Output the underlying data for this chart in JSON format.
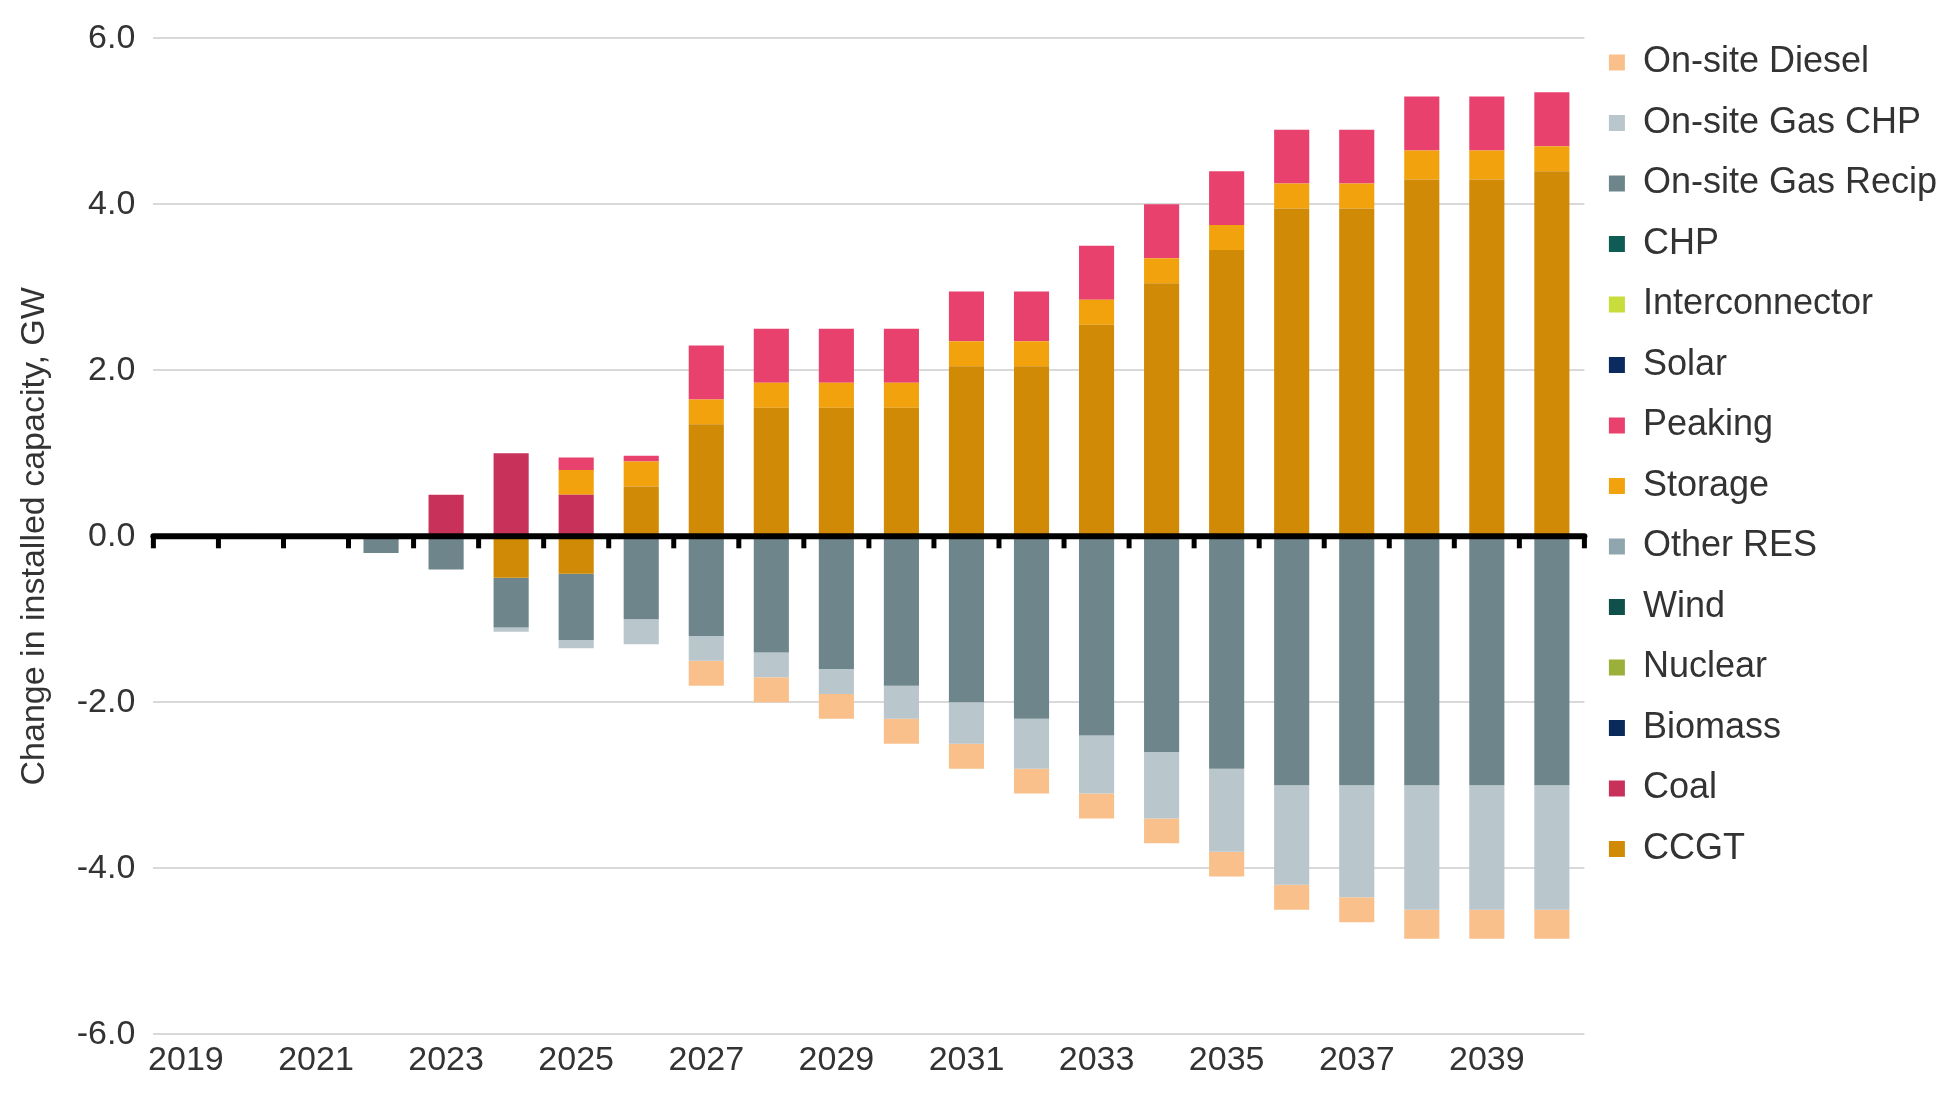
{
  "chart_data": {
    "type": "bar",
    "stacked": true,
    "ylabel": "Change in installed capacity, GW",
    "categories": [
      "2019",
      null,
      "2021",
      null,
      "2023",
      null,
      "2025",
      null,
      "2027",
      null,
      "2029",
      null,
      "2031",
      null,
      "2033",
      null,
      "2035",
      null,
      "2037",
      null,
      "2039",
      null
    ],
    "series": [
      {
        "name": "CCGT",
        "color": "#d18a06",
        "values": [
          0,
          0,
          0,
          0,
          0,
          -0.5,
          -0.45,
          0.6,
          1.35,
          1.55,
          1.55,
          1.55,
          2.05,
          2.05,
          2.55,
          3.05,
          3.45,
          3.95,
          3.95,
          4.3,
          4.3,
          4.4
        ]
      },
      {
        "name": "Coal",
        "color": "#c8325a",
        "values": [
          0,
          0,
          0,
          0,
          0.5,
          1.0,
          0.5,
          0,
          0,
          0,
          0,
          0,
          0,
          0,
          0,
          0,
          0,
          0,
          0,
          0,
          0,
          0
        ]
      },
      {
        "name": "Biomass",
        "color": "#0a2a5a",
        "values": [
          0,
          0,
          0,
          0,
          0,
          0,
          0,
          0,
          0,
          0,
          0,
          0,
          0,
          0,
          0,
          0,
          0,
          0,
          0,
          0,
          0,
          0
        ]
      },
      {
        "name": "Nuclear",
        "color": "#9bb03a",
        "values": [
          0,
          0,
          0,
          0,
          0,
          0,
          0,
          0,
          0,
          0,
          0,
          0,
          0,
          0,
          0,
          0,
          0,
          0,
          0,
          0,
          0,
          0
        ]
      },
      {
        "name": "Wind",
        "color": "#10504a",
        "values": [
          0,
          0,
          0,
          0,
          0,
          0,
          0,
          0,
          0,
          0,
          0,
          0,
          0,
          0,
          0,
          0,
          0,
          0,
          0,
          0,
          0,
          0
        ]
      },
      {
        "name": "Other RES",
        "color": "#8fa6ae",
        "values": [
          0,
          0,
          0,
          0,
          0,
          0,
          0,
          0,
          0,
          0,
          0,
          0,
          0,
          0,
          0,
          0,
          0,
          0,
          0,
          0,
          0,
          0
        ]
      },
      {
        "name": "Storage",
        "color": "#f2a20c",
        "values": [
          0,
          0,
          0,
          0,
          0,
          0,
          0.3,
          0.3,
          0.3,
          0.3,
          0.3,
          0.3,
          0.3,
          0.3,
          0.3,
          0.3,
          0.3,
          0.3,
          0.3,
          0.35,
          0.35,
          0.3
        ]
      },
      {
        "name": "Peaking",
        "color": "#e8416e",
        "values": [
          0,
          0,
          0,
          0,
          0,
          0,
          0.15,
          0.07,
          0.65,
          0.65,
          0.65,
          0.65,
          0.6,
          0.6,
          0.65,
          0.65,
          0.65,
          0.65,
          0.65,
          0.65,
          0.65,
          0.65
        ]
      },
      {
        "name": "Solar",
        "color": "#0b2a5e",
        "values": [
          0,
          0,
          0,
          0,
          0,
          0,
          0,
          0,
          0,
          0,
          0,
          0,
          0,
          0,
          0,
          0,
          0,
          0,
          0,
          0,
          0,
          0
        ]
      },
      {
        "name": "Interconnector",
        "color": "#c8dc3c",
        "values": [
          0,
          0,
          0,
          0,
          0,
          0,
          0,
          0,
          0,
          0,
          0,
          0,
          0,
          0,
          0,
          0,
          0,
          0,
          0,
          0,
          0,
          0
        ]
      },
      {
        "name": "CHP",
        "color": "#0f5c55",
        "values": [
          0,
          0,
          0,
          0,
          0,
          0,
          0,
          0,
          0,
          0,
          0,
          0,
          0,
          0,
          0,
          0,
          0,
          0,
          0,
          0,
          0,
          0
        ]
      },
      {
        "name": "On-site Gas Recip",
        "color": "#6e868b",
        "values": [
          0,
          0,
          0,
          -0.2,
          -0.4,
          -0.6,
          -0.8,
          -1.0,
          -1.2,
          -1.4,
          -1.6,
          -1.8,
          -2.0,
          -2.2,
          -2.4,
          -2.6,
          -2.8,
          -3.0,
          -3.0,
          -3.0,
          -3.0,
          -3.0
        ]
      },
      {
        "name": "On-site Gas CHP",
        "color": "#b9c6cc",
        "values": [
          0,
          0,
          0,
          0,
          0,
          -0.05,
          -0.1,
          -0.3,
          -0.3,
          -0.3,
          -0.3,
          -0.4,
          -0.5,
          -0.6,
          -0.7,
          -0.8,
          -1.0,
          -1.2,
          -1.35,
          -1.5,
          -1.5,
          -1.5
        ]
      },
      {
        "name": "On-site Diesel",
        "color": "#f9c08c",
        "values": [
          0,
          0,
          0,
          0,
          0,
          0,
          0,
          0,
          -0.3,
          -0.3,
          -0.3,
          -0.3,
          -0.3,
          -0.3,
          -0.3,
          -0.3,
          -0.3,
          -0.3,
          -0.3,
          -0.35,
          -0.35,
          -0.35
        ]
      }
    ],
    "ylim": [
      -6,
      6
    ],
    "yticks": [
      {
        "value": -6,
        "label": "-6.0"
      },
      {
        "value": -4,
        "label": "-4.0"
      },
      {
        "value": -2,
        "label": "-2.0"
      },
      {
        "value": 0,
        "label": "0.0"
      },
      {
        "value": 2,
        "label": "2.0"
      },
      {
        "value": 4,
        "label": "4.0"
      },
      {
        "value": 6,
        "label": "6.0"
      }
    ],
    "grid": "y",
    "legend": "right"
  }
}
